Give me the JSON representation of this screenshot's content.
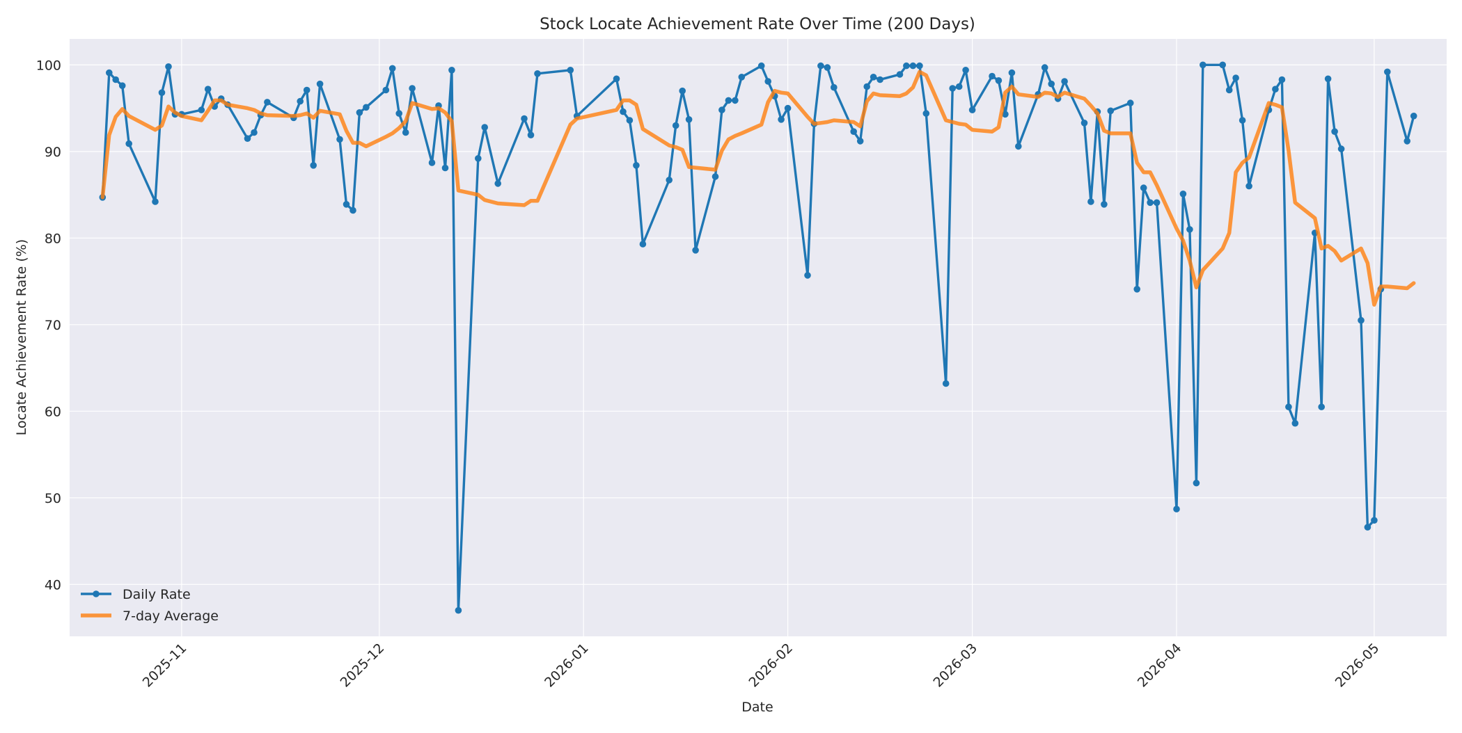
{
  "chart_data": {
    "type": "line",
    "title": "Stock Locate Achievement Rate Over Time (200 Days)",
    "xlabel": "Date",
    "ylabel": "Locate Achievement Rate (%)",
    "xlim": [
      "2025-10-15",
      "2026-05-12"
    ],
    "ylim": [
      34,
      103
    ],
    "x_ticks": [
      "2025-11-01",
      "2025-12-01",
      "2026-01-01",
      "2026-02-01",
      "2026-03-01",
      "2026-04-01",
      "2026-05-01"
    ],
    "x_tick_labels": [
      "2025-11",
      "2025-12",
      "2026-01",
      "2026-02",
      "2026-03",
      "2026-04",
      "2026-05"
    ],
    "y_ticks": [
      40,
      50,
      60,
      70,
      80,
      90,
      100
    ],
    "grid": true,
    "legend_position": "lower-left",
    "colors": {
      "daily": "#1f77b4",
      "avg": "#ff7f0e",
      "background": "#eaeaf2",
      "grid": "#ffffff"
    },
    "series": [
      {
        "name": "Daily Rate",
        "marker": "circle",
        "points": [
          [
            "2025-10-20",
            84.7
          ],
          [
            "2025-10-21",
            99.1
          ],
          [
            "2025-10-22",
            98.3
          ],
          [
            "2025-10-23",
            97.6
          ],
          [
            "2025-10-24",
            90.9
          ],
          [
            "2025-10-28",
            84.2
          ],
          [
            "2025-10-29",
            96.8
          ],
          [
            "2025-10-30",
            99.8
          ],
          [
            "2025-10-31",
            94.3
          ],
          [
            "2025-11-01",
            94.3
          ],
          [
            "2025-11-04",
            94.8
          ],
          [
            "2025-11-05",
            97.2
          ],
          [
            "2025-11-06",
            95.2
          ],
          [
            "2025-11-07",
            96.1
          ],
          [
            "2025-11-08",
            95.4
          ],
          [
            "2025-11-11",
            91.5
          ],
          [
            "2025-11-12",
            92.2
          ],
          [
            "2025-11-13",
            94.2
          ],
          [
            "2025-11-14",
            95.7
          ],
          [
            "2025-11-18",
            93.9
          ],
          [
            "2025-11-19",
            95.8
          ],
          [
            "2025-11-20",
            97.1
          ],
          [
            "2025-11-21",
            88.4
          ],
          [
            "2025-11-22",
            97.8
          ],
          [
            "2025-11-25",
            91.4
          ],
          [
            "2025-11-26",
            83.9
          ],
          [
            "2025-11-27",
            83.2
          ],
          [
            "2025-11-28",
            94.5
          ],
          [
            "2025-11-29",
            95.1
          ],
          [
            "2025-12-02",
            97.1
          ],
          [
            "2025-12-03",
            99.6
          ],
          [
            "2025-12-04",
            94.4
          ],
          [
            "2025-12-05",
            92.2
          ],
          [
            "2025-12-06",
            97.3
          ],
          [
            "2025-12-09",
            88.7
          ],
          [
            "2025-12-10",
            95.3
          ],
          [
            "2025-12-11",
            88.1
          ],
          [
            "2025-12-12",
            99.4
          ],
          [
            "2025-12-13",
            37.0
          ],
          [
            "2025-12-16",
            89.2
          ],
          [
            "2025-12-17",
            92.8
          ],
          [
            "2025-12-19",
            86.3
          ],
          [
            "2025-12-23",
            93.8
          ],
          [
            "2025-12-24",
            91.9
          ],
          [
            "2025-12-25",
            99.0
          ],
          [
            "2025-12-30",
            99.4
          ],
          [
            "2025-12-31",
            94.1
          ],
          [
            "2026-01-06",
            98.4
          ],
          [
            "2026-01-07",
            94.6
          ],
          [
            "2026-01-08",
            93.6
          ],
          [
            "2026-01-09",
            88.4
          ],
          [
            "2026-01-10",
            79.3
          ],
          [
            "2026-01-14",
            86.7
          ],
          [
            "2026-01-15",
            93.0
          ],
          [
            "2026-01-16",
            97.0
          ],
          [
            "2026-01-17",
            93.7
          ],
          [
            "2026-01-18",
            78.6
          ],
          [
            "2026-01-21",
            87.1
          ],
          [
            "2026-01-22",
            94.8
          ],
          [
            "2026-01-23",
            95.9
          ],
          [
            "2026-01-24",
            95.9
          ],
          [
            "2026-01-25",
            98.6
          ],
          [
            "2026-01-28",
            99.9
          ],
          [
            "2026-01-29",
            98.1
          ],
          [
            "2026-01-30",
            96.4
          ],
          [
            "2026-01-31",
            93.7
          ],
          [
            "2026-02-01",
            95.0
          ],
          [
            "2026-02-04",
            75.7
          ],
          [
            "2026-02-05",
            93.2
          ],
          [
            "2026-02-06",
            99.9
          ],
          [
            "2026-02-07",
            99.7
          ],
          [
            "2026-02-08",
            97.4
          ],
          [
            "2026-02-11",
            92.3
          ],
          [
            "2026-02-12",
            91.2
          ],
          [
            "2026-02-13",
            97.5
          ],
          [
            "2026-02-14",
            98.6
          ],
          [
            "2026-02-15",
            98.3
          ],
          [
            "2026-02-18",
            98.9
          ],
          [
            "2026-02-19",
            99.9
          ],
          [
            "2026-02-20",
            99.9
          ],
          [
            "2026-02-21",
            99.9
          ],
          [
            "2026-02-22",
            94.4
          ],
          [
            "2026-02-25",
            63.2
          ],
          [
            "2026-02-26",
            97.3
          ],
          [
            "2026-02-27",
            97.5
          ],
          [
            "2026-02-28",
            99.4
          ],
          [
            "2026-03-01",
            94.8
          ],
          [
            "2026-03-04",
            98.7
          ],
          [
            "2026-03-05",
            98.2
          ],
          [
            "2026-03-06",
            94.3
          ],
          [
            "2026-03-07",
            99.1
          ],
          [
            "2026-03-08",
            90.6
          ],
          [
            "2026-03-11",
            96.6
          ],
          [
            "2026-03-12",
            99.7
          ],
          [
            "2026-03-13",
            97.8
          ],
          [
            "2026-03-14",
            96.1
          ],
          [
            "2026-03-15",
            98.1
          ],
          [
            "2026-03-18",
            93.3
          ],
          [
            "2026-03-19",
            84.2
          ],
          [
            "2026-03-20",
            94.6
          ],
          [
            "2026-03-21",
            83.9
          ],
          [
            "2026-03-22",
            94.7
          ],
          [
            "2026-03-25",
            95.6
          ],
          [
            "2026-03-26",
            74.1
          ],
          [
            "2026-03-27",
            85.8
          ],
          [
            "2026-03-28",
            84.1
          ],
          [
            "2026-03-29",
            84.1
          ],
          [
            "2026-04-01",
            48.7
          ],
          [
            "2026-04-02",
            85.1
          ],
          [
            "2026-04-03",
            81.0
          ],
          [
            "2026-04-04",
            51.7
          ],
          [
            "2026-04-05",
            100.0
          ],
          [
            "2026-04-08",
            100.0
          ],
          [
            "2026-04-09",
            97.1
          ],
          [
            "2026-04-10",
            98.5
          ],
          [
            "2026-04-11",
            93.6
          ],
          [
            "2026-04-12",
            86.0
          ],
          [
            "2026-04-15",
            94.8
          ],
          [
            "2026-04-16",
            97.2
          ],
          [
            "2026-04-17",
            98.3
          ],
          [
            "2026-04-18",
            60.5
          ],
          [
            "2026-04-19",
            58.6
          ],
          [
            "2026-04-22",
            80.6
          ],
          [
            "2026-04-23",
            60.5
          ],
          [
            "2026-04-24",
            98.4
          ],
          [
            "2026-04-25",
            92.3
          ],
          [
            "2026-04-26",
            90.3
          ],
          [
            "2026-04-29",
            70.5
          ],
          [
            "2026-04-30",
            46.6
          ],
          [
            "2026-05-01",
            47.4
          ],
          [
            "2026-05-02",
            74.1
          ],
          [
            "2026-05-03",
            99.2
          ],
          [
            "2026-05-06",
            91.2
          ],
          [
            "2026-05-07",
            94.1
          ]
        ]
      },
      {
        "name": "7-day Average",
        "marker": "none",
        "points": [
          [
            "2025-10-20",
            84.7
          ],
          [
            "2025-10-21",
            91.9
          ],
          [
            "2025-10-22",
            94.0
          ],
          [
            "2025-10-23",
            94.9
          ],
          [
            "2025-10-24",
            94.1
          ],
          [
            "2025-10-28",
            92.5
          ],
          [
            "2025-10-29",
            93.0
          ],
          [
            "2025-10-30",
            95.2
          ],
          [
            "2025-10-31",
            94.5
          ],
          [
            "2025-11-01",
            94.1
          ],
          [
            "2025-11-04",
            93.6
          ],
          [
            "2025-11-05",
            94.7
          ],
          [
            "2025-11-06",
            95.9
          ],
          [
            "2025-11-07",
            95.9
          ],
          [
            "2025-11-08",
            95.4
          ],
          [
            "2025-11-11",
            95.0
          ],
          [
            "2025-11-12",
            94.8
          ],
          [
            "2025-11-13",
            94.4
          ],
          [
            "2025-11-14",
            94.2
          ],
          [
            "2025-11-18",
            94.1
          ],
          [
            "2025-11-19",
            94.2
          ],
          [
            "2025-11-20",
            94.4
          ],
          [
            "2025-11-21",
            93.9
          ],
          [
            "2025-11-22",
            94.7
          ],
          [
            "2025-11-25",
            94.3
          ],
          [
            "2025-11-26",
            92.4
          ],
          [
            "2025-11-27",
            91.0
          ],
          [
            "2025-11-28",
            91.0
          ],
          [
            "2025-11-29",
            90.6
          ],
          [
            "2025-12-02",
            91.7
          ],
          [
            "2025-12-03",
            92.1
          ],
          [
            "2025-12-04",
            92.7
          ],
          [
            "2025-12-05",
            93.5
          ],
          [
            "2025-12-06",
            95.6
          ],
          [
            "2025-12-09",
            94.9
          ],
          [
            "2025-12-10",
            95.0
          ],
          [
            "2025-12-11",
            94.5
          ],
          [
            "2025-12-12",
            93.5
          ],
          [
            "2025-12-13",
            85.5
          ],
          [
            "2025-12-16",
            85.0
          ],
          [
            "2025-12-17",
            84.4
          ],
          [
            "2025-12-19",
            84.0
          ],
          [
            "2025-12-23",
            83.8
          ],
          [
            "2025-12-24",
            84.3
          ],
          [
            "2025-12-25",
            84.3
          ],
          [
            "2025-12-30",
            93.1
          ],
          [
            "2025-12-31",
            93.8
          ],
          [
            "2026-01-06",
            94.8
          ],
          [
            "2026-01-07",
            95.9
          ],
          [
            "2026-01-08",
            95.9
          ],
          [
            "2026-01-09",
            95.4
          ],
          [
            "2026-01-10",
            92.6
          ],
          [
            "2026-01-14",
            90.7
          ],
          [
            "2026-01-15",
            90.5
          ],
          [
            "2026-01-16",
            90.2
          ],
          [
            "2026-01-17",
            88.2
          ],
          [
            "2026-01-21",
            87.9
          ],
          [
            "2026-01-22",
            90.1
          ],
          [
            "2026-01-23",
            91.4
          ],
          [
            "2026-01-24",
            91.8
          ],
          [
            "2026-01-25",
            92.1
          ],
          [
            "2026-01-28",
            93.1
          ],
          [
            "2026-01-29",
            95.7
          ],
          [
            "2026-01-30",
            97.0
          ],
          [
            "2026-01-31",
            96.8
          ],
          [
            "2026-02-01",
            96.7
          ],
          [
            "2026-02-04",
            94.0
          ],
          [
            "2026-02-05",
            93.2
          ],
          [
            "2026-02-06",
            93.3
          ],
          [
            "2026-02-07",
            93.4
          ],
          [
            "2026-02-08",
            93.6
          ],
          [
            "2026-02-11",
            93.4
          ],
          [
            "2026-02-12",
            92.9
          ],
          [
            "2026-02-13",
            95.8
          ],
          [
            "2026-02-14",
            96.7
          ],
          [
            "2026-02-15",
            96.5
          ],
          [
            "2026-02-18",
            96.4
          ],
          [
            "2026-02-19",
            96.7
          ],
          [
            "2026-02-20",
            97.4
          ],
          [
            "2026-02-21",
            99.2
          ],
          [
            "2026-02-22",
            98.8
          ],
          [
            "2026-02-25",
            93.6
          ],
          [
            "2026-02-26",
            93.4
          ],
          [
            "2026-02-27",
            93.2
          ],
          [
            "2026-02-28",
            93.1
          ],
          [
            "2026-03-01",
            92.5
          ],
          [
            "2026-03-04",
            92.3
          ],
          [
            "2026-03-05",
            92.8
          ],
          [
            "2026-03-06",
            96.8
          ],
          [
            "2026-03-07",
            97.5
          ],
          [
            "2026-03-08",
            96.6
          ],
          [
            "2026-03-11",
            96.3
          ],
          [
            "2026-03-12",
            96.8
          ],
          [
            "2026-03-13",
            96.7
          ],
          [
            "2026-03-14",
            96.3
          ],
          [
            "2026-03-15",
            96.8
          ],
          [
            "2026-03-18",
            96.1
          ],
          [
            "2026-03-19",
            95.3
          ],
          [
            "2026-03-20",
            94.4
          ],
          [
            "2026-03-21",
            92.4
          ],
          [
            "2026-03-22",
            92.1
          ],
          [
            "2026-03-25",
            92.1
          ],
          [
            "2026-03-26",
            88.7
          ],
          [
            "2026-03-27",
            87.6
          ],
          [
            "2026-03-28",
            87.6
          ],
          [
            "2026-03-29",
            86.1
          ],
          [
            "2026-04-01",
            81.1
          ],
          [
            "2026-04-02",
            79.7
          ],
          [
            "2026-04-03",
            77.4
          ],
          [
            "2026-04-04",
            74.3
          ],
          [
            "2026-04-05",
            76.3
          ],
          [
            "2026-04-08",
            78.8
          ],
          [
            "2026-04-09",
            80.6
          ],
          [
            "2026-04-10",
            87.6
          ],
          [
            "2026-04-11",
            88.7
          ],
          [
            "2026-04-12",
            89.3
          ],
          [
            "2026-04-15",
            95.6
          ],
          [
            "2026-04-16",
            95.4
          ],
          [
            "2026-04-17",
            95.1
          ],
          [
            "2026-04-18",
            90.1
          ],
          [
            "2026-04-19",
            84.1
          ],
          [
            "2026-04-22",
            82.3
          ],
          [
            "2026-04-23",
            78.8
          ],
          [
            "2026-04-24",
            79.1
          ],
          [
            "2026-04-25",
            78.5
          ],
          [
            "2026-04-26",
            77.4
          ],
          [
            "2026-04-29",
            78.8
          ],
          [
            "2026-04-30",
            77.1
          ],
          [
            "2026-05-01",
            72.3
          ],
          [
            "2026-05-02",
            74.4
          ],
          [
            "2026-05-03",
            74.4
          ],
          [
            "2026-05-06",
            74.2
          ],
          [
            "2026-05-07",
            74.8
          ]
        ]
      }
    ]
  }
}
